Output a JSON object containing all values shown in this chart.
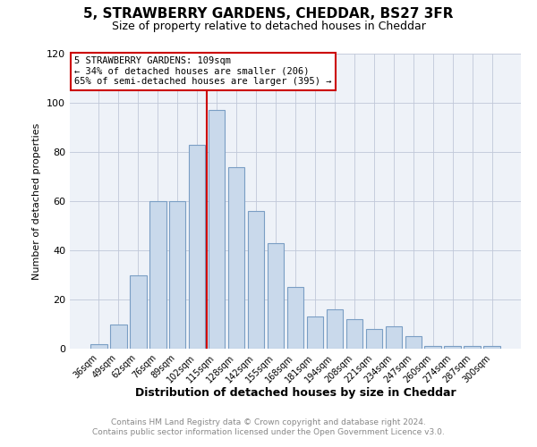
{
  "title": "5, STRAWBERRY GARDENS, CHEDDAR, BS27 3FR",
  "subtitle": "Size of property relative to detached houses in Cheddar",
  "xlabel": "Distribution of detached houses by size in Cheddar",
  "ylabel": "Number of detached properties",
  "bar_labels": [
    "36sqm",
    "49sqm",
    "62sqm",
    "76sqm",
    "89sqm",
    "102sqm",
    "115sqm",
    "128sqm",
    "142sqm",
    "155sqm",
    "168sqm",
    "181sqm",
    "194sqm",
    "208sqm",
    "221sqm",
    "234sqm",
    "247sqm",
    "260sqm",
    "274sqm",
    "287sqm",
    "300sqm"
  ],
  "bar_values": [
    2,
    10,
    30,
    60,
    60,
    83,
    97,
    74,
    56,
    43,
    25,
    13,
    16,
    12,
    8,
    9,
    5,
    1,
    1,
    1,
    1
  ],
  "bar_color": "#c9d9eb",
  "bar_edge_color": "#7a9ec4",
  "vline_x": 5.5,
  "vline_color": "#cc0000",
  "ylim": [
    0,
    120
  ],
  "yticks": [
    0,
    20,
    40,
    60,
    80,
    100,
    120
  ],
  "annotation_lines": [
    "5 STRAWBERRY GARDENS: 109sqm",
    "← 34% of detached houses are smaller (206)",
    "65% of semi-detached houses are larger (395) →"
  ],
  "annotation_box_color": "#ffffff",
  "annotation_box_edge": "#cc0000",
  "footer_line1": "Contains HM Land Registry data © Crown copyright and database right 2024.",
  "footer_line2": "Contains public sector information licensed under the Open Government Licence v3.0.",
  "grid_color": "#c0c8d8",
  "background_color": "#eef2f8"
}
